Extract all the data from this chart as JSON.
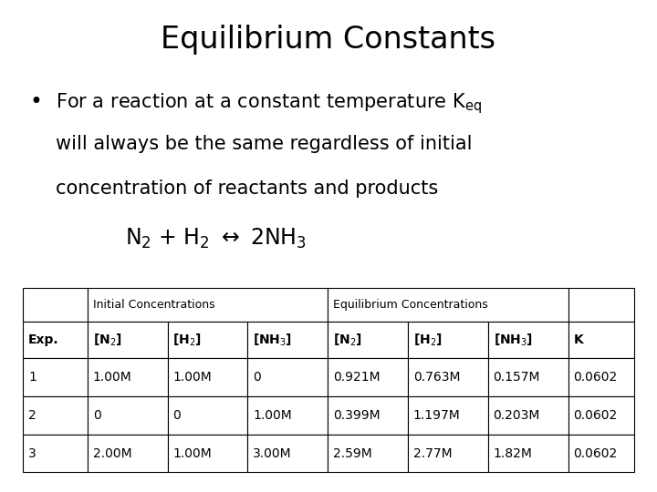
{
  "title": "Equilibrium Constants",
  "bullet_line1": "For a reaction at a constant temperature K",
  "bullet_line1_sub": "eq",
  "bullet_line2": "will always be the same regardless of initial",
  "bullet_line3": "concentration of reactants and products",
  "table_header_row2": [
    "Exp.",
    "[N₂]",
    "[H₂]",
    "[NH₃]",
    "[N₂]",
    "[H₂]",
    "[NH₃]",
    "K"
  ],
  "table_data": [
    [
      "1",
      "1.00M",
      "1.00M",
      "0",
      "0.921M",
      "0.763M",
      "0.157M",
      "0.0602"
    ],
    [
      "2",
      "0",
      "0",
      "1.00M",
      "0.399M",
      "1.197M",
      "0.203M",
      "0.0602"
    ],
    [
      "3",
      "2.00M",
      "1.00M",
      "3.00M",
      "2.59M",
      "2.77M",
      "1.82M",
      "0.0602"
    ]
  ],
  "bg_color": "#ffffff",
  "text_color": "#000000",
  "title_fontsize": 24,
  "body_fontsize": 15,
  "equation_fontsize": 17,
  "table_header_fontsize": 9,
  "table_body_fontsize": 10
}
